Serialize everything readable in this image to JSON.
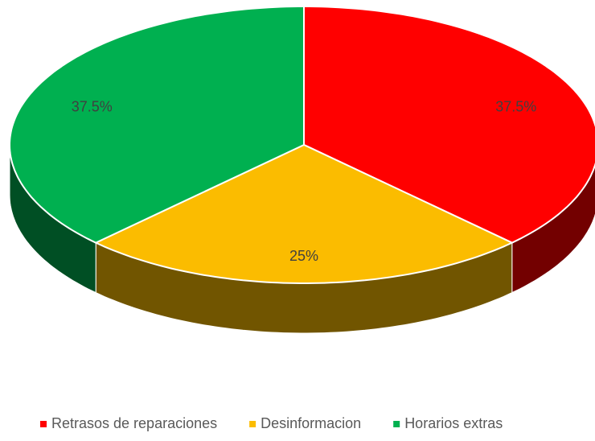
{
  "chart_data": {
    "type": "pie3d",
    "categories": [
      "Retrasos de reparaciones",
      "Desinformacion",
      "Horarios extras"
    ],
    "values": [
      37.5,
      25,
      37.5
    ],
    "value_labels": [
      "37.5%",
      "25%",
      "37.5%"
    ],
    "colors": [
      "#ff0000",
      "#fbbc00",
      "#00b050"
    ],
    "legend": "bottom"
  }
}
